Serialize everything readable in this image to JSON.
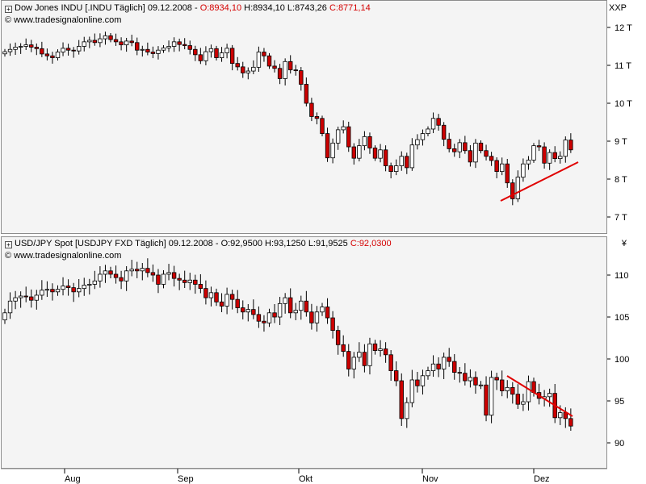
{
  "top_panel": {
    "title_prefix": "Dow Jones INDU [.INDU  Täglich] 09.12.2008 - ",
    "open_label": "O:8934,10",
    "hl_label": " H:8934,10 L:8743,26 ",
    "close_label": "C:8771,14",
    "source": "© www.tradesignalonline.com",
    "axis_unit": "XXP"
  },
  "bottom_panel": {
    "title_prefix": "USD/JPY Spot [USDJPY FXD  Täglich] 09.12.2008 - O:92,9500 H:93,1250 L:91,9525 ",
    "close_label": "C:92,0300",
    "source": "© www.tradesignalonline.com",
    "axis_unit": "¥"
  },
  "x_axis": {
    "labels": [
      "Aug",
      "Sep",
      "Okt",
      "Nov",
      "Dez"
    ]
  },
  "colors": {
    "up": "#ffffff",
    "down": "#cc0000",
    "trend": "#e00000",
    "panel_bg": "#f4f4f4"
  },
  "chart_data": [
    {
      "type": "candlestick",
      "title": "Dow Jones INDU [.INDU  Täglich] 09.12.2008",
      "y_tick_labels": [
        "12 T",
        "11 T",
        "10 T",
        "9 T",
        "8 T",
        "7 T"
      ],
      "y_ticks": [
        12000,
        11000,
        10000,
        9000,
        8000,
        7000
      ],
      "ylim": [
        6800,
        12500
      ],
      "x_labels": [
        "Aug",
        "Sep",
        "Okt",
        "Nov",
        "Dez"
      ],
      "series": [
        {
          "name": "Dow Jones INDU",
          "close_values": [
            11360,
            11420,
            11480,
            11500,
            11540,
            11480,
            11440,
            11300,
            11250,
            11200,
            11350,
            11450,
            11400,
            11380,
            11500,
            11620,
            11660,
            11600,
            11700,
            11780,
            11680,
            11620,
            11540,
            11640,
            11600,
            11400,
            11420,
            11350,
            11310,
            11400,
            11460,
            11500,
            11620,
            11550,
            11520,
            11420,
            11280,
            11120,
            11360,
            11440,
            11200,
            11330,
            11450,
            11050,
            10960,
            10800,
            10850,
            10950,
            11350,
            11250,
            10980,
            10920,
            10650,
            11100,
            10880,
            10860,
            10500,
            10000,
            9650,
            9600,
            9200,
            8560,
            8950,
            9300,
            9380,
            8850,
            8550,
            8880,
            9120,
            8820,
            8550,
            8770,
            8350,
            8200,
            8350,
            8600,
            8300,
            8900,
            9040,
            9200,
            9320,
            9600,
            9420,
            9050,
            8800,
            8720,
            8960,
            8750,
            8450,
            8950,
            8750,
            8600,
            8490,
            8200,
            8400,
            7900,
            7480,
            8050,
            8400,
            8500,
            8880,
            8850,
            8420,
            8700,
            8540,
            8600,
            9030,
            8771
          ]
        }
      ]
    },
    {
      "type": "candlestick",
      "title": "USD/JPY Spot [USDJPY FXD  Täglich] 09.12.2008",
      "y_tick_labels": [
        "110",
        "105",
        "100",
        "95",
        "90"
      ],
      "y_ticks": [
        110,
        105,
        100,
        95,
        90
      ],
      "ylim": [
        87,
        114
      ],
      "x_labels": [
        "Aug",
        "Sep",
        "Okt",
        "Nov",
        "Dez"
      ],
      "series": [
        {
          "name": "USD/JPY",
          "close_values": [
            105.5,
            106.9,
            107.3,
            107.5,
            107.4,
            107.0,
            107.6,
            108.2,
            108.3,
            108.0,
            108.3,
            108.7,
            108.5,
            108.0,
            108.4,
            108.8,
            108.9,
            109.3,
            110.1,
            110.5,
            110.1,
            109.7,
            109.3,
            110.5,
            110.7,
            110.5,
            110.8,
            110.3,
            110.0,
            108.9,
            110.1,
            110.3,
            109.6,
            109.4,
            109.1,
            109.4,
            108.9,
            108.4,
            107.3,
            107.9,
            106.8,
            106.3,
            107.7,
            107.1,
            106.1,
            105.6,
            105.9,
            105.3,
            104.5,
            104.3,
            105.5,
            105.0,
            106.6,
            107.3,
            105.5,
            105.8,
            106.9,
            105.6,
            104.3,
            105.6,
            106.2,
            104.9,
            103.4,
            101.7,
            100.9,
            98.8,
            100.2,
            100.8,
            99.2,
            101.8,
            101.0,
            101.2,
            100.5,
            98.6,
            97.4,
            92.9,
            94.8,
            97.5,
            96.8,
            98.0,
            98.6,
            99.4,
            98.8,
            100.2,
            99.7,
            98.4,
            98.3,
            97.4,
            97.8,
            96.9,
            96.9,
            93.3,
            97.8,
            97.5,
            96.2,
            96.6,
            95.8,
            94.6,
            94.9,
            97.3,
            96.0,
            95.3,
            95.5,
            95.9,
            93.0,
            93.6,
            92.9,
            92.0
          ]
        }
      ]
    }
  ]
}
